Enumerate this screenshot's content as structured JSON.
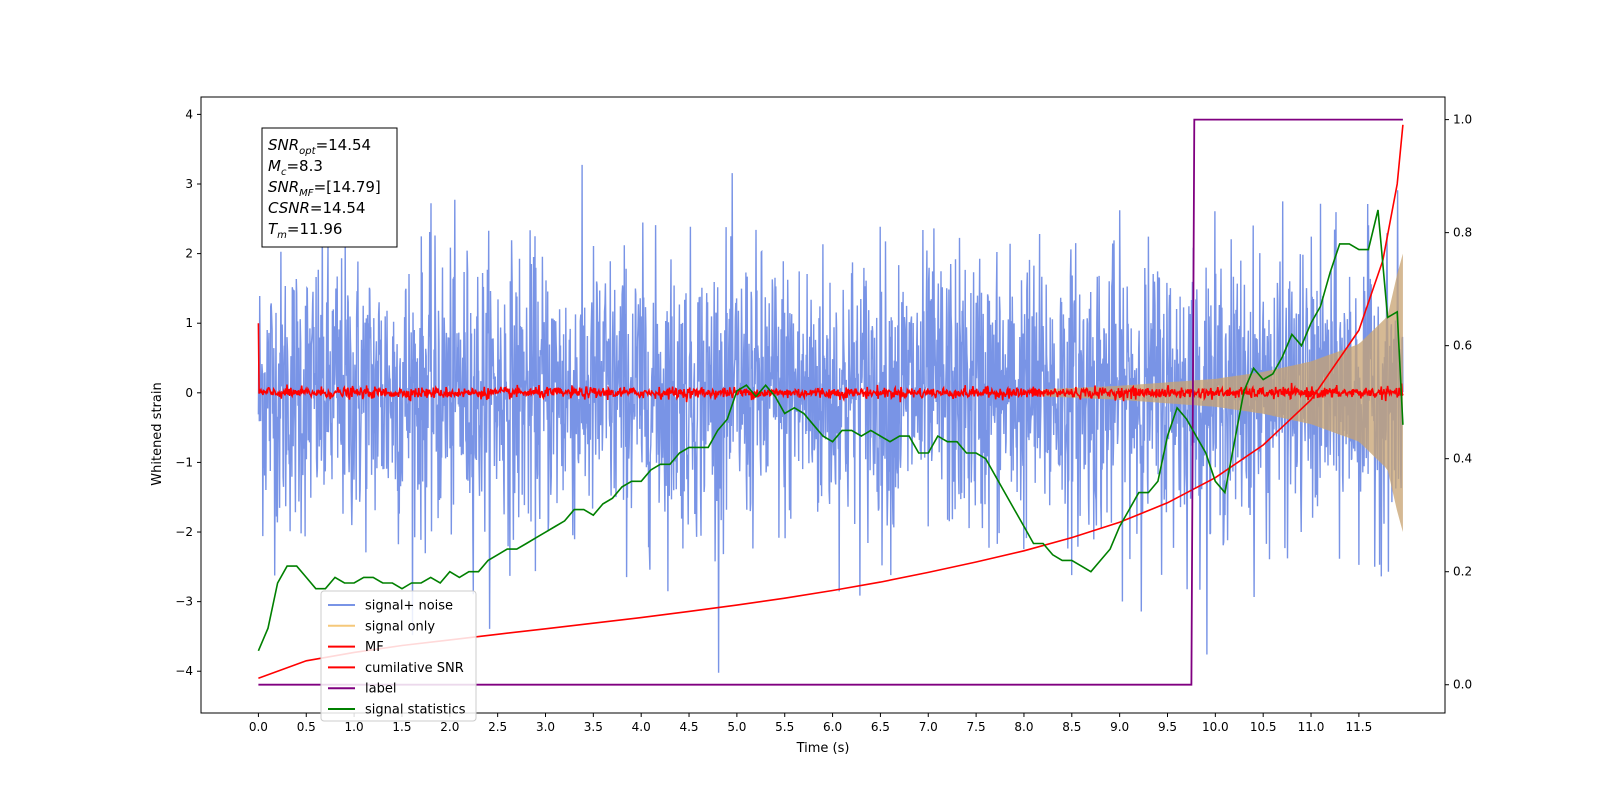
{
  "chart_data": {
    "type": "line",
    "xlabel": "Time (s)",
    "ylabel": "Whitened strain",
    "xlim": [
      -0.6,
      12.4
    ],
    "ylim": [
      -4.6,
      4.25
    ],
    "y2lim": [
      -0.05,
      1.04
    ],
    "xticks": [
      "0.0",
      "0.5",
      "1.0",
      "1.5",
      "2.0",
      "2.5",
      "3.0",
      "3.5",
      "4.0",
      "4.5",
      "5.0",
      "5.5",
      "6.0",
      "6.5",
      "7.0",
      "7.5",
      "8.0",
      "8.5",
      "9.0",
      "9.5",
      "10.0",
      "10.5",
      "11.0",
      "11.5"
    ],
    "yticks": [
      "4",
      "3",
      "2",
      "1",
      "0",
      "−1",
      "−2",
      "−3",
      "−4"
    ],
    "y2ticks": [
      "1.0",
      "0.8",
      "0.6",
      "0.4",
      "0.2",
      "0.0"
    ],
    "grid": false,
    "legend_placement": "lower-left",
    "annotation": {
      "lines": [
        {
          "base": "SNR",
          "sub": "opt",
          "value": "=14.54"
        },
        {
          "base": "M",
          "sub": "c",
          "value": "=8.3"
        },
        {
          "base": "SNR",
          "sub": "MF",
          "value": "=[14.79]"
        },
        {
          "base": "CSNR",
          "sub": "",
          "value": "=14.54"
        },
        {
          "base": "T",
          "sub": "m",
          "value": "=11.96"
        }
      ]
    },
    "series": [
      {
        "name": "signal+ noise",
        "color": "#7994e6",
        "axis": "left",
        "kind": "noise",
        "duration": 11.96,
        "mean": 0.0,
        "typical_amplitude": 1.0,
        "peak_range": [
          -4.15,
          3.85
        ]
      },
      {
        "name": "signal only",
        "color": "#f5c87a",
        "axis": "left",
        "kind": "chirp_envelope",
        "x": [
          8.2,
          9.0,
          9.5,
          10.0,
          10.5,
          11.0,
          11.5,
          11.8,
          11.9,
          11.96
        ],
        "envelope": [
          0.05,
          0.1,
          0.15,
          0.2,
          0.3,
          0.45,
          0.7,
          1.1,
          1.7,
          2.0
        ]
      },
      {
        "name": "MF",
        "color": "#ff0000",
        "axis": "left",
        "kind": "noise_band",
        "start_value": 1.0,
        "typical_amplitude": 0.08
      },
      {
        "name": "cumilative SNR",
        "color": "#ff0000",
        "axis": "left",
        "x": [
          0.0,
          0.5,
          1.0,
          1.5,
          2.0,
          2.5,
          3.0,
          3.5,
          4.0,
          4.5,
          5.0,
          5.5,
          6.0,
          6.5,
          7.0,
          7.5,
          8.0,
          8.5,
          9.0,
          9.5,
          10.0,
          10.5,
          11.0,
          11.5,
          11.75,
          11.9,
          11.96
        ],
        "y": [
          -4.1,
          -3.85,
          -3.73,
          -3.63,
          -3.55,
          -3.47,
          -3.39,
          -3.31,
          -3.23,
          -3.14,
          -3.05,
          -2.95,
          -2.84,
          -2.72,
          -2.58,
          -2.43,
          -2.27,
          -2.08,
          -1.86,
          -1.58,
          -1.22,
          -0.75,
          -0.1,
          0.9,
          1.9,
          3.0,
          3.85
        ]
      },
      {
        "name": "label",
        "color": "#800080",
        "axis": "right",
        "x": [
          0.0,
          9.75,
          9.78,
          11.96
        ],
        "y": [
          0.0,
          0.0,
          1.0,
          1.0
        ]
      },
      {
        "name": "signal statistics",
        "color": "#008000",
        "axis": "right",
        "x": [
          0.0,
          0.1,
          0.2,
          0.3,
          0.4,
          0.5,
          0.6,
          0.7,
          0.8,
          0.9,
          1.0,
          1.1,
          1.2,
          1.3,
          1.4,
          1.5,
          1.6,
          1.7,
          1.8,
          1.9,
          2.0,
          2.1,
          2.2,
          2.3,
          2.4,
          2.5,
          2.6,
          2.7,
          2.8,
          2.9,
          3.0,
          3.1,
          3.2,
          3.3,
          3.4,
          3.5,
          3.6,
          3.7,
          3.8,
          3.9,
          4.0,
          4.1,
          4.2,
          4.3,
          4.4,
          4.5,
          4.6,
          4.7,
          4.8,
          4.9,
          5.0,
          5.1,
          5.2,
          5.3,
          5.4,
          5.5,
          5.6,
          5.7,
          5.8,
          5.9,
          6.0,
          6.1,
          6.2,
          6.3,
          6.4,
          6.5,
          6.6,
          6.7,
          6.8,
          6.9,
          7.0,
          7.1,
          7.2,
          7.3,
          7.4,
          7.5,
          7.6,
          7.7,
          7.8,
          7.9,
          8.0,
          8.1,
          8.2,
          8.3,
          8.4,
          8.5,
          8.6,
          8.7,
          8.8,
          8.9,
          9.0,
          9.1,
          9.2,
          9.3,
          9.4,
          9.5,
          9.6,
          9.7,
          9.8,
          9.9,
          10.0,
          10.1,
          10.2,
          10.3,
          10.4,
          10.5,
          10.6,
          10.7,
          10.8,
          10.9,
          11.0,
          11.1,
          11.2,
          11.3,
          11.4,
          11.5,
          11.6,
          11.7,
          11.8,
          11.9,
          11.96
        ],
        "y": [
          0.06,
          0.1,
          0.18,
          0.21,
          0.21,
          0.19,
          0.17,
          0.17,
          0.19,
          0.18,
          0.18,
          0.19,
          0.19,
          0.18,
          0.18,
          0.17,
          0.18,
          0.18,
          0.19,
          0.18,
          0.2,
          0.19,
          0.2,
          0.2,
          0.22,
          0.23,
          0.24,
          0.24,
          0.25,
          0.26,
          0.27,
          0.28,
          0.29,
          0.31,
          0.31,
          0.3,
          0.32,
          0.33,
          0.35,
          0.36,
          0.36,
          0.38,
          0.39,
          0.39,
          0.41,
          0.42,
          0.42,
          0.42,
          0.45,
          0.47,
          0.52,
          0.53,
          0.51,
          0.53,
          0.51,
          0.48,
          0.49,
          0.48,
          0.46,
          0.44,
          0.43,
          0.45,
          0.45,
          0.44,
          0.45,
          0.44,
          0.43,
          0.44,
          0.44,
          0.41,
          0.41,
          0.44,
          0.43,
          0.43,
          0.41,
          0.41,
          0.4,
          0.37,
          0.34,
          0.31,
          0.28,
          0.25,
          0.25,
          0.23,
          0.22,
          0.22,
          0.21,
          0.2,
          0.22,
          0.24,
          0.28,
          0.31,
          0.34,
          0.34,
          0.36,
          0.44,
          0.49,
          0.47,
          0.44,
          0.41,
          0.36,
          0.34,
          0.43,
          0.52,
          0.56,
          0.54,
          0.55,
          0.58,
          0.62,
          0.6,
          0.64,
          0.67,
          0.73,
          0.78,
          0.78,
          0.77,
          0.77,
          0.84,
          0.65,
          0.66,
          0.46
        ]
      }
    ]
  }
}
